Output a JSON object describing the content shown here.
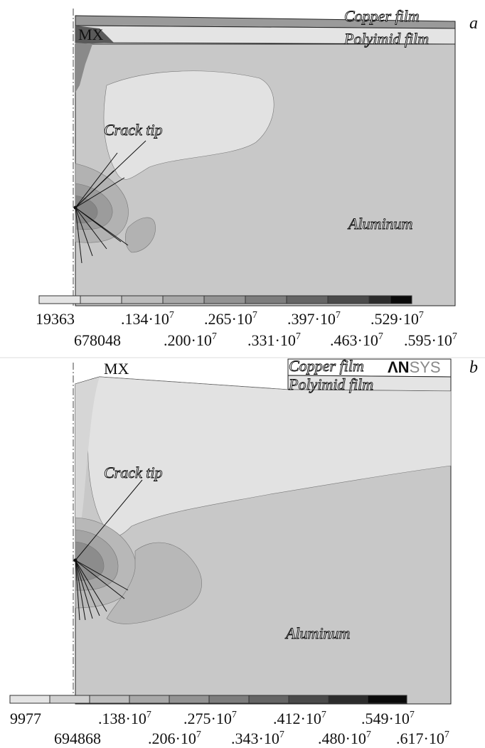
{
  "panels": [
    {
      "letter": "a",
      "max_marker": "MX",
      "labels": {
        "copper": "Copper film",
        "polyimid": "Polyimid film",
        "crack_tip": "Crack tip",
        "aluminum": "Aluminum"
      },
      "legend_top": [
        "19363",
        ".134·10",
        ".265·10",
        ".397·10",
        ".529·10"
      ],
      "legend_bottom": [
        "678048",
        ".200·10",
        ".331·10",
        ".463·10",
        ".595·10"
      ],
      "exponent": "7"
    },
    {
      "letter": "b",
      "max_marker": "MX",
      "logo": {
        "part1": "ΛN",
        "part2": "SYS"
      },
      "labels": {
        "copper": "Copper film",
        "polyimid": "Polyimid film",
        "crack_tip": "Crack tip",
        "aluminum": "Aluminum"
      },
      "legend_top": [
        "9977",
        ".138·10",
        ".275·10",
        ".412·10",
        ".549·10"
      ],
      "legend_bottom": [
        "694868",
        ".206·10",
        ".343·10",
        ".480·10",
        ".617·10"
      ],
      "exponent": "7"
    }
  ],
  "colors": {
    "legend": [
      "#e4e4e4",
      "#d0d0d0",
      "#bdbdbd",
      "#a8a8a8",
      "#939393",
      "#7d7d7d",
      "#656565",
      "#4a4a4a",
      "#2c2c2c",
      "#0a0a0a"
    ],
    "background_region": "#c8c8c8",
    "light_region": "#e2e2e2"
  }
}
